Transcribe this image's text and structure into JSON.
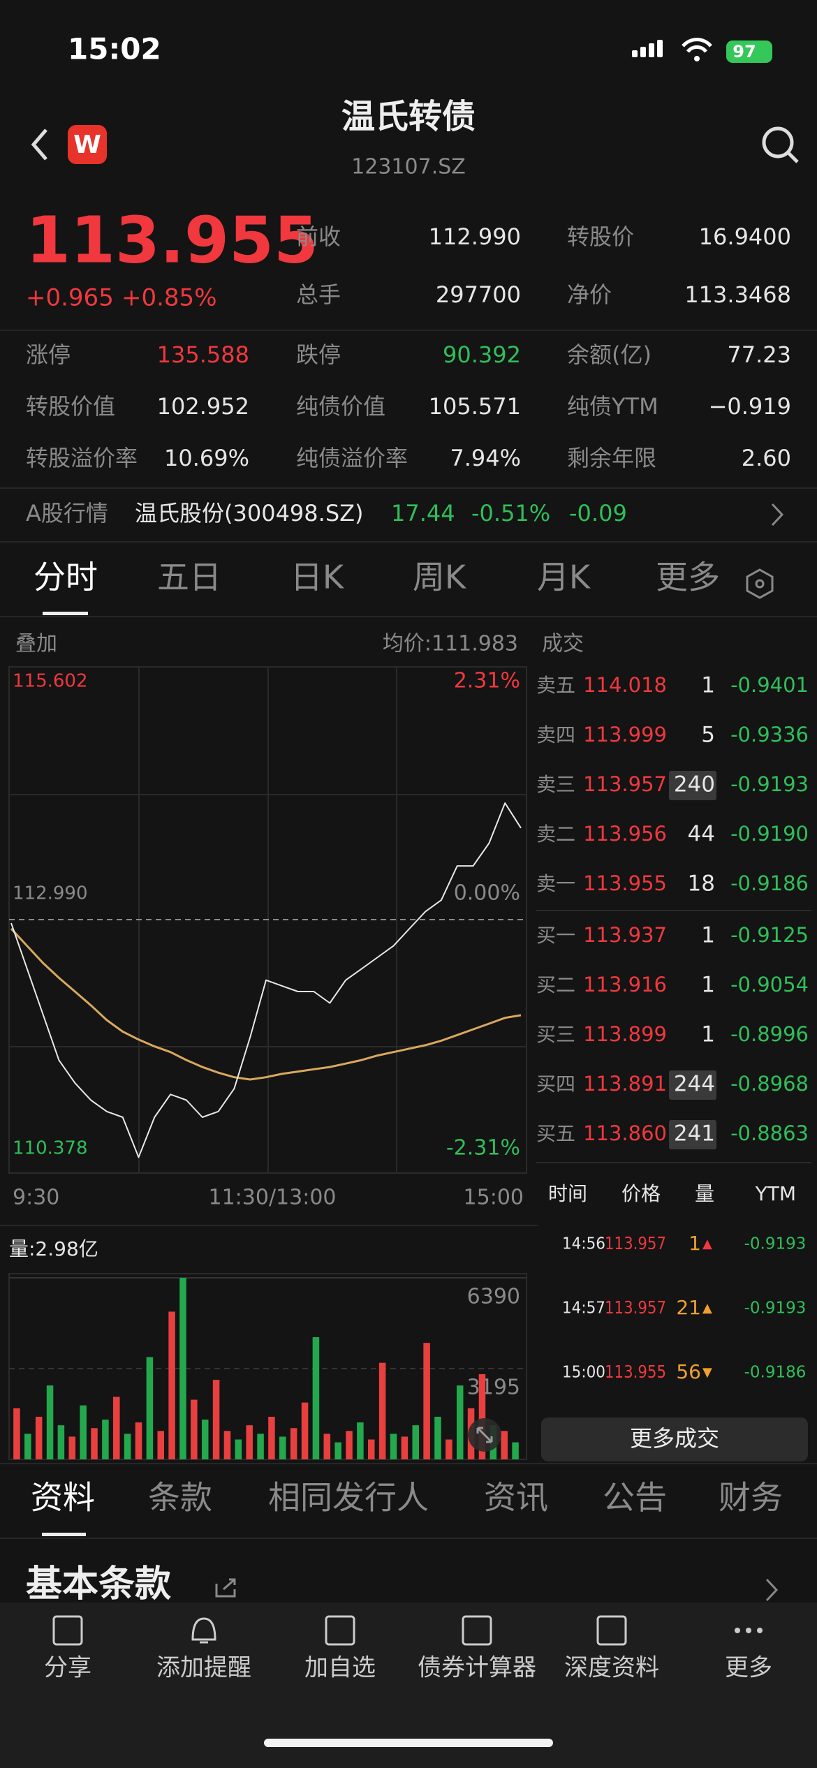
{
  "status_bar": {
    "time": "15:02",
    "battery": "97"
  },
  "header": {
    "title": "温氏转债",
    "code": "123107.SZ"
  },
  "quote": {
    "price": "113.955",
    "change": "+0.965",
    "change_pct": "+0.85%"
  },
  "stats_top": [
    {
      "label": "前收",
      "value": "112.990"
    },
    {
      "label": "转股价",
      "value": "16.9400"
    },
    {
      "label": "总手",
      "value": "297700"
    },
    {
      "label": "净价",
      "value": "113.3468"
    }
  ],
  "stats_grid": [
    {
      "label": "涨停",
      "value": "135.588",
      "color": "#f0383e"
    },
    {
      "label": "跌停",
      "value": "90.392",
      "color": "#2fbf5a"
    },
    {
      "label": "余额(亿)",
      "value": "77.23",
      "color": "#e6e6e6"
    },
    {
      "label": "转股价值",
      "value": "102.952",
      "color": "#e6e6e6"
    },
    {
      "label": "纯债价值",
      "value": "105.571",
      "color": "#e6e6e6"
    },
    {
      "label": "纯债YTM",
      "value": "−0.919",
      "color": "#e6e6e6"
    },
    {
      "label": "转股溢价率",
      "value": "10.69%",
      "color": "#e6e6e6"
    },
    {
      "label": "纯债溢价率",
      "value": "7.94%",
      "color": "#e6e6e6"
    },
    {
      "label": "剩余年限",
      "value": "2.60",
      "color": "#e6e6e6"
    }
  ],
  "stock_row": {
    "label": "A股行情",
    "name": "温氏股份(300498.SZ)",
    "price": "17.44",
    "change_pct": "-0.51%",
    "change": "-0.09"
  },
  "chart_tabs": [
    "分时",
    "五日",
    "日K",
    "周K",
    "月K",
    "更多"
  ],
  "chart": {
    "overlay_label": "叠加",
    "avg_label": "均价:111.983",
    "trade_label": "成交",
    "ylim": [
      110.378,
      115.602
    ],
    "yticks": [
      115.602,
      {
        "value": 112.99,
        "label": "112.990"
      },
      110.378
    ],
    "y2lim": [
      -2.31,
      2.31
    ],
    "y2ticks": [
      {
        "value": 2.31,
        "label": "2.31%"
      },
      {
        "value": 0,
        "label": "0.00%"
      },
      {
        "value": -2.31,
        "label": "-2.31%"
      }
    ],
    "xticks": [
      "9:30",
      "11:30/13:00",
      "15:00"
    ],
    "price_color": "#e8e8e8",
    "avg_color": "#d9a85e",
    "price": [
      112.954,
      112.472,
      111.991,
      111.509,
      111.269,
      111.088,
      110.968,
      110.908,
      110.486,
      110.908,
      111.148,
      111.088,
      110.908,
      110.968,
      111.209,
      111.75,
      112.352,
      112.292,
      112.232,
      112.232,
      112.111,
      112.352,
      112.472,
      112.593,
      112.713,
      112.894,
      113.074,
      113.195,
      113.556,
      113.556,
      113.796,
      114.218,
      113.955
    ],
    "avg": [
      112.894,
      112.713,
      112.533,
      112.376,
      112.232,
      112.087,
      111.931,
      111.81,
      111.726,
      111.654,
      111.594,
      111.51,
      111.437,
      111.377,
      111.329,
      111.305,
      111.329,
      111.365,
      111.389,
      111.413,
      111.437,
      111.473,
      111.51,
      111.558,
      111.594,
      111.63,
      111.666,
      111.714,
      111.774,
      111.834,
      111.894,
      111.955,
      111.983
    ]
  },
  "volume": {
    "label": "量:2.98亿",
    "ylim": [
      0,
      6390
    ],
    "yticks": [
      6390,
      3195
    ],
    "values": [
      1800,
      900,
      1500,
      2600,
      1200,
      800,
      1900,
      1100,
      1400,
      2200,
      900,
      1300,
      3600,
      1000,
      5200,
      6390,
      2100,
      1400,
      2800,
      1000,
      700,
      1200,
      900,
      1500,
      800,
      1100,
      2000,
      4300,
      900,
      600,
      1000,
      1300,
      700,
      3400,
      900,
      800,
      1200,
      4100,
      1500,
      700,
      2600,
      1800,
      3000,
      1200,
      1000,
      600
    ],
    "colors": [
      "#e8403f",
      "#23a84d",
      "#e8403f",
      "#23a84d",
      "#23a84d",
      "#e8403f",
      "#23a84d",
      "#e8403f",
      "#23a84d",
      "#e8403f",
      "#23a84d",
      "#e8403f",
      "#23a84d",
      "#e8403f",
      "#e8403f",
      "#23a84d",
      "#e8403f",
      "#23a84d",
      "#e8403f",
      "#e8403f",
      "#23a84d",
      "#e8403f",
      "#23a84d",
      "#e8403f",
      "#23a84d",
      "#e8403f",
      "#e8403f",
      "#23a84d",
      "#e8403f",
      "#23a84d",
      "#e8403f",
      "#23a84d",
      "#e8403f",
      "#e8403f",
      "#23a84d",
      "#e8403f",
      "#23a84d",
      "#e8403f",
      "#23a84d",
      "#e8403f",
      "#23a84d",
      "#e8403f",
      "#e8403f",
      "#23a84d",
      "#e8403f",
      "#23a84d"
    ]
  },
  "order_book": [
    {
      "label": "卖五",
      "price": "114.018",
      "volume": "1",
      "ytm": "-0.9401",
      "highlight": false
    },
    {
      "label": "卖四",
      "price": "113.999",
      "volume": "5",
      "ytm": "-0.9336",
      "highlight": false
    },
    {
      "label": "卖三",
      "price": "113.957",
      "volume": "240",
      "ytm": "-0.9193",
      "highlight": true
    },
    {
      "label": "卖二",
      "price": "113.956",
      "volume": "44",
      "ytm": "-0.9190",
      "highlight": false
    },
    {
      "label": "卖一",
      "price": "113.955",
      "volume": "18",
      "ytm": "-0.9186",
      "highlight": false
    },
    {
      "label": "买一",
      "price": "113.937",
      "volume": "1",
      "ytm": "-0.9125",
      "highlight": false
    },
    {
      "label": "买二",
      "price": "113.916",
      "volume": "1",
      "ytm": "-0.9054",
      "highlight": false
    },
    {
      "label": "买三",
      "price": "113.899",
      "volume": "1",
      "ytm": "-0.8996",
      "highlight": false
    },
    {
      "label": "买四",
      "price": "113.891",
      "volume": "244",
      "ytm": "-0.8968",
      "highlight": true
    },
    {
      "label": "买五",
      "price": "113.860",
      "volume": "241",
      "ytm": "-0.8863",
      "highlight": true
    }
  ],
  "trades": {
    "headers": [
      "时间",
      "价格",
      "量",
      "YTM"
    ],
    "rows": [
      {
        "time": "14:56",
        "price": "113.957",
        "volume": "1",
        "arrow": "▲",
        "color": "#f0383e"
      },
      {
        "time": "14:57",
        "price": "113.957",
        "volume": "21",
        "arrow": "▲",
        "color": "#f0a030"
      },
      {
        "time": "15:00",
        "price": "113.955",
        "volume": "56",
        "arrow": "▼",
        "color": "#f0a030"
      }
    ],
    "ytm": [
      "-0.9193",
      "-0.9193",
      "-0.9186"
    ],
    "more_button": "更多成交"
  },
  "info_tabs": [
    "资料",
    "条款",
    "相同发行人",
    "资讯",
    "公告",
    "财务"
  ],
  "section_title": "基本条款",
  "bottom_nav": [
    "分享",
    "添加提醒",
    "加自选",
    "债券计算器",
    "深度资料",
    "更多"
  ]
}
